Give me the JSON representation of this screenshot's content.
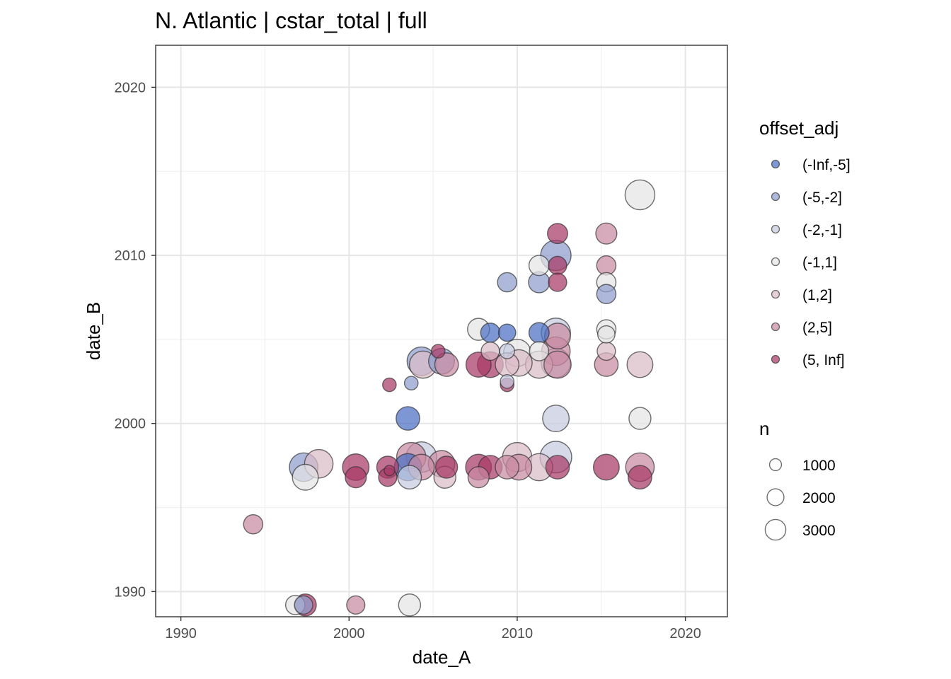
{
  "chart_data": {
    "type": "scatter",
    "title": "N. Atlantic | cstar_total | full",
    "xlabel": "date_A",
    "ylabel": "date_B",
    "xlim": [
      1988.5,
      2022.5
    ],
    "ylim": [
      1988.5,
      2022.5
    ],
    "x_ticks": [
      1990,
      2000,
      2010,
      2020
    ],
    "y_ticks": [
      1990,
      2000,
      2010,
      2020
    ],
    "x_tick_labels": [
      "1990",
      "2000",
      "2010",
      "2020"
    ],
    "y_tick_labels": [
      "1990",
      "2000",
      "2010",
      "2020"
    ],
    "grid": true,
    "color_legend": {
      "title": "offset_adj",
      "placement": "right",
      "entries": [
        {
          "label": "(-Inf,-5]",
          "color": "#4a6fc4"
        },
        {
          "label": "(-5,-2]",
          "color": "#8e9ccc"
        },
        {
          "label": "(-2,-1]",
          "color": "#c5cadf"
        },
        {
          "label": "(-1,1]",
          "color": "#e4e4e4"
        },
        {
          "label": "(1,2]",
          "color": "#dbbcc8"
        },
        {
          "label": "(2,5]",
          "color": "#c98aa2"
        },
        {
          "label": "(5, Inf]",
          "color": "#a83a66"
        }
      ]
    },
    "size_legend": {
      "title": "n",
      "placement": "right",
      "entries": [
        {
          "label": "1000",
          "value": 1000
        },
        {
          "label": "2000",
          "value": 2000
        },
        {
          "label": "3000",
          "value": 3000
        }
      ]
    },
    "points": [
      {
        "x": 1994.3,
        "y": 1994.0,
        "n": 1000,
        "cat": "(2,5]"
      },
      {
        "x": 1996.8,
        "y": 1989.2,
        "n": 1000,
        "cat": "(-1,1]"
      },
      {
        "x": 1997.3,
        "y": 1989.2,
        "n": 900,
        "cat": "(-5,-2]"
      },
      {
        "x": 1997.4,
        "y": 1989.2,
        "n": 1300,
        "cat": "(5, Inf]"
      },
      {
        "x": 2000.4,
        "y": 1989.2,
        "n": 900,
        "cat": "(2,5]"
      },
      {
        "x": 2003.6,
        "y": 1989.2,
        "n": 1300,
        "cat": "(-1,1]"
      },
      {
        "x": 1997.3,
        "y": 1997.4,
        "n": 2200,
        "cat": "(-5,-2]"
      },
      {
        "x": 1997.4,
        "y": 1996.8,
        "n": 1800,
        "cat": "(-1,1]"
      },
      {
        "x": 1998.2,
        "y": 1997.6,
        "n": 2200,
        "cat": "(1,2]"
      },
      {
        "x": 2000.4,
        "y": 1997.4,
        "n": 1900,
        "cat": "(5, Inf]"
      },
      {
        "x": 2000.4,
        "y": 1996.8,
        "n": 1200,
        "cat": "(5, Inf]"
      },
      {
        "x": 2002.3,
        "y": 1997.4,
        "n": 1300,
        "cat": "(5, Inf]"
      },
      {
        "x": 2002.3,
        "y": 1996.8,
        "n": 900,
        "cat": "(5, Inf]"
      },
      {
        "x": 2002.4,
        "y": 1997.2,
        "n": 300,
        "cat": "(5, Inf]"
      },
      {
        "x": 2003.5,
        "y": 1997.4,
        "n": 2000,
        "cat": "(-Inf,-5]"
      },
      {
        "x": 2003.6,
        "y": 1996.8,
        "n": 1500,
        "cat": "(-2,-1]"
      },
      {
        "x": 2003.7,
        "y": 1998.0,
        "n": 2300,
        "cat": "(2,5]"
      },
      {
        "x": 2004.3,
        "y": 1998.0,
        "n": 2500,
        "cat": "(-2,-1]"
      },
      {
        "x": 2004.3,
        "y": 1997.4,
        "n": 1800,
        "cat": "(2,5]"
      },
      {
        "x": 2005.5,
        "y": 1997.6,
        "n": 1900,
        "cat": "(2,5]"
      },
      {
        "x": 2005.7,
        "y": 1996.8,
        "n": 1300,
        "cat": "(1,2]"
      },
      {
        "x": 2005.8,
        "y": 1997.4,
        "n": 1300,
        "cat": "(5, Inf]"
      },
      {
        "x": 2007.7,
        "y": 1997.4,
        "n": 1800,
        "cat": "(5, Inf]"
      },
      {
        "x": 2007.7,
        "y": 1996.8,
        "n": 1200,
        "cat": "(2,5]"
      },
      {
        "x": 2008.4,
        "y": 1997.4,
        "n": 1500,
        "cat": "(5, Inf]"
      },
      {
        "x": 2009.4,
        "y": 1997.4,
        "n": 1500,
        "cat": "(2,5]"
      },
      {
        "x": 2010.0,
        "y": 1998.0,
        "n": 2300,
        "cat": "(1,2]"
      },
      {
        "x": 2010.1,
        "y": 1997.4,
        "n": 1800,
        "cat": "(2,5]"
      },
      {
        "x": 2011.3,
        "y": 1997.4,
        "n": 2000,
        "cat": "(1,2]"
      },
      {
        "x": 2012.3,
        "y": 1998.0,
        "n": 2700,
        "cat": "(-2,-1]"
      },
      {
        "x": 2012.4,
        "y": 1997.4,
        "n": 1500,
        "cat": "(5, Inf]"
      },
      {
        "x": 2015.3,
        "y": 1997.4,
        "n": 1800,
        "cat": "(5, Inf]"
      },
      {
        "x": 2017.3,
        "y": 1997.4,
        "n": 2200,
        "cat": "(2,5]"
      },
      {
        "x": 2017.3,
        "y": 1996.8,
        "n": 1500,
        "cat": "(5, Inf]"
      },
      {
        "x": 2003.5,
        "y": 2000.3,
        "n": 1500,
        "cat": "(-Inf,-5]"
      },
      {
        "x": 2012.3,
        "y": 2000.3,
        "n": 1900,
        "cat": "(-2,-1]"
      },
      {
        "x": 2017.3,
        "y": 2000.3,
        "n": 1300,
        "cat": "(-1,1]"
      },
      {
        "x": 2002.4,
        "y": 2002.3,
        "n": 500,
        "cat": "(5, Inf]"
      },
      {
        "x": 2003.7,
        "y": 2002.4,
        "n": 500,
        "cat": "(-5,-2]"
      },
      {
        "x": 2009.4,
        "y": 2002.3,
        "n": 500,
        "cat": "(5, Inf]"
      },
      {
        "x": 2009.4,
        "y": 2002.5,
        "n": 500,
        "cat": "(-2,-1]"
      },
      {
        "x": 2004.3,
        "y": 2003.7,
        "n": 2200,
        "cat": "(-5,-2]"
      },
      {
        "x": 2004.4,
        "y": 2003.5,
        "n": 2000,
        "cat": "(1,2]"
      },
      {
        "x": 2005.3,
        "y": 2004.3,
        "n": 500,
        "cat": "(5, Inf]"
      },
      {
        "x": 2005.5,
        "y": 2003.7,
        "n": 1800,
        "cat": "(-5,-2]"
      },
      {
        "x": 2005.8,
        "y": 2003.5,
        "n": 1500,
        "cat": "(2,5]"
      },
      {
        "x": 2007.7,
        "y": 2003.5,
        "n": 1700,
        "cat": "(5, Inf]"
      },
      {
        "x": 2007.7,
        "y": 2005.6,
        "n": 1300,
        "cat": "(-1,1]"
      },
      {
        "x": 2008.4,
        "y": 2005.4,
        "n": 1000,
        "cat": "(-Inf,-5]"
      },
      {
        "x": 2008.4,
        "y": 2004.3,
        "n": 900,
        "cat": "(1,2]"
      },
      {
        "x": 2008.4,
        "y": 2003.5,
        "n": 1800,
        "cat": "(5, Inf]"
      },
      {
        "x": 2009.4,
        "y": 2008.4,
        "n": 1000,
        "cat": "(-5,-2]"
      },
      {
        "x": 2009.4,
        "y": 2005.4,
        "n": 800,
        "cat": "(-Inf,-5]"
      },
      {
        "x": 2009.4,
        "y": 2004.3,
        "n": 600,
        "cat": "(-2,-1]"
      },
      {
        "x": 2009.4,
        "y": 2003.5,
        "n": 1500,
        "cat": "(1,2]"
      },
      {
        "x": 2010.0,
        "y": 2004.2,
        "n": 2000,
        "cat": "(-1,1]"
      },
      {
        "x": 2010.1,
        "y": 2003.6,
        "n": 1900,
        "cat": "(1,2]"
      },
      {
        "x": 2011.3,
        "y": 2009.4,
        "n": 1100,
        "cat": "(-1,1]"
      },
      {
        "x": 2011.3,
        "y": 2008.4,
        "n": 1200,
        "cat": "(-5,-2]"
      },
      {
        "x": 2011.3,
        "y": 2005.4,
        "n": 1100,
        "cat": "(-Inf,-5]"
      },
      {
        "x": 2011.3,
        "y": 2004.3,
        "n": 1000,
        "cat": "(-1,1]"
      },
      {
        "x": 2011.3,
        "y": 2003.5,
        "n": 2000,
        "cat": "(1,2]"
      },
      {
        "x": 2012.3,
        "y": 2010.0,
        "n": 2500,
        "cat": "(-5,-2]"
      },
      {
        "x": 2012.4,
        "y": 2011.3,
        "n": 1100,
        "cat": "(5, Inf]"
      },
      {
        "x": 2012.4,
        "y": 2009.4,
        "n": 900,
        "cat": "(5, Inf]"
      },
      {
        "x": 2012.4,
        "y": 2008.4,
        "n": 900,
        "cat": "(5, Inf]"
      },
      {
        "x": 2012.3,
        "y": 2005.4,
        "n": 2300,
        "cat": "(-2,-1]"
      },
      {
        "x": 2012.4,
        "y": 2005.2,
        "n": 1800,
        "cat": "(2,5]"
      },
      {
        "x": 2012.3,
        "y": 2004.3,
        "n": 2200,
        "cat": "(2,5]"
      },
      {
        "x": 2012.3,
        "y": 2003.6,
        "n": 2300,
        "cat": "(-2,-1]"
      },
      {
        "x": 2012.4,
        "y": 2003.5,
        "n": 2000,
        "cat": "(2,5]"
      },
      {
        "x": 2015.3,
        "y": 2011.3,
        "n": 1200,
        "cat": "(2,5]"
      },
      {
        "x": 2015.3,
        "y": 2009.4,
        "n": 1000,
        "cat": "(2,5]"
      },
      {
        "x": 2015.3,
        "y": 2008.4,
        "n": 1000,
        "cat": "(-1,1]"
      },
      {
        "x": 2015.3,
        "y": 2007.7,
        "n": 1000,
        "cat": "(-5,-2]"
      },
      {
        "x": 2015.3,
        "y": 2005.6,
        "n": 1000,
        "cat": "(-1,1]"
      },
      {
        "x": 2015.3,
        "y": 2005.3,
        "n": 800,
        "cat": "(-1,1]"
      },
      {
        "x": 2015.3,
        "y": 2004.3,
        "n": 900,
        "cat": "(1,2]"
      },
      {
        "x": 2015.3,
        "y": 2003.5,
        "n": 1500,
        "cat": "(2,5]"
      },
      {
        "x": 2017.3,
        "y": 2013.6,
        "n": 2400,
        "cat": "(-1,1]"
      },
      {
        "x": 2017.3,
        "y": 2003.5,
        "n": 1800,
        "cat": "(1,2]"
      }
    ]
  }
}
